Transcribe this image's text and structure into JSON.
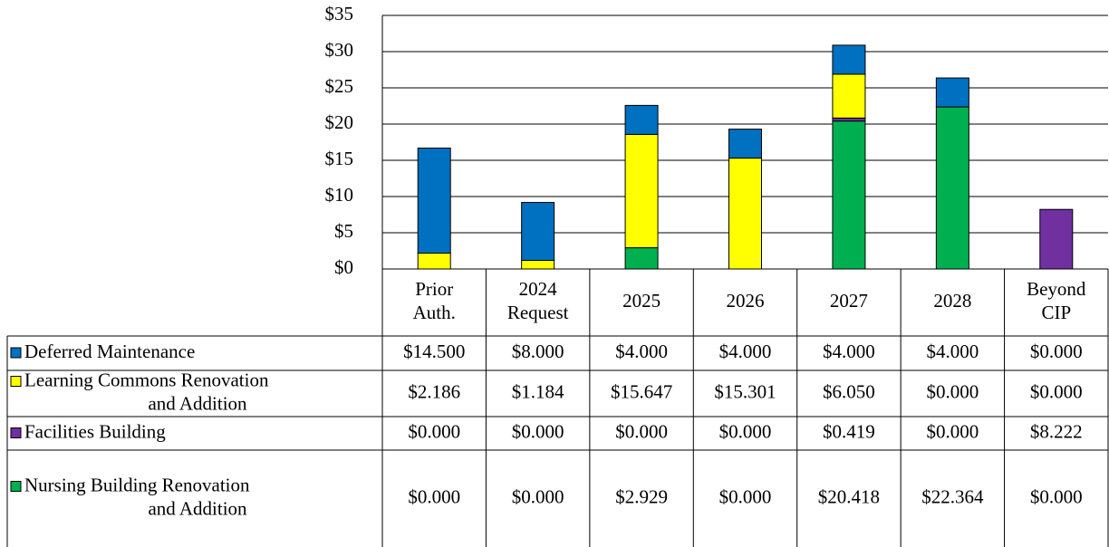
{
  "chart_data": {
    "type": "bar",
    "stacked": true,
    "categories": [
      "Prior Auth.",
      "2024 Request",
      "2025",
      "2026",
      "2027",
      "2028",
      "Beyond CIP"
    ],
    "series": [
      {
        "name": "Deferred Maintenance",
        "color": "#0070c0",
        "values": [
          14.5,
          8,
          4,
          4,
          4,
          4,
          0
        ],
        "value_labels": [
          "$14.500",
          "$8.000",
          "$4.000",
          "$4.000",
          "$4.000",
          "$4.000",
          "$0.000"
        ]
      },
      {
        "name": "Learning Commons Renovation and Addition",
        "color": "#ffff00",
        "values": [
          2.186,
          1.184,
          15.647,
          15.301,
          6.05,
          0,
          0
        ],
        "value_labels": [
          "$2.186",
          "$1.184",
          "$15.647",
          "$15.301",
          "$6.050",
          "$0.000",
          "$0.000"
        ]
      },
      {
        "name": "Facilities Building",
        "color": "#7030a0",
        "values": [
          0,
          0,
          0,
          0,
          0.419,
          0,
          8.222
        ],
        "value_labels": [
          "$0.000",
          "$0.000",
          "$0.000",
          "$0.000",
          "$0.419",
          "$0.000",
          "$8.222"
        ]
      },
      {
        "name": "Nursing Building Renovation and Addition",
        "color": "#00b050",
        "values": [
          0,
          0,
          2.929,
          0,
          20.418,
          22.364,
          0
        ],
        "value_labels": [
          "$0.000",
          "$0.000",
          "$2.929",
          "$0.000",
          "$20.418",
          "$22.364",
          "$0.000"
        ]
      }
    ],
    "ylim": [
      0,
      35
    ],
    "yticks": [
      {
        "value": 0,
        "label": "$0"
      },
      {
        "value": 5,
        "label": "$5"
      },
      {
        "value": 10,
        "label": "$10"
      },
      {
        "value": 15,
        "label": "$15"
      },
      {
        "value": 20,
        "label": "$20"
      },
      {
        "value": 25,
        "label": "$25"
      },
      {
        "value": 30,
        "label": "$30"
      },
      {
        "value": 35,
        "label": "$35"
      }
    ],
    "grid": true,
    "data_table": true
  }
}
